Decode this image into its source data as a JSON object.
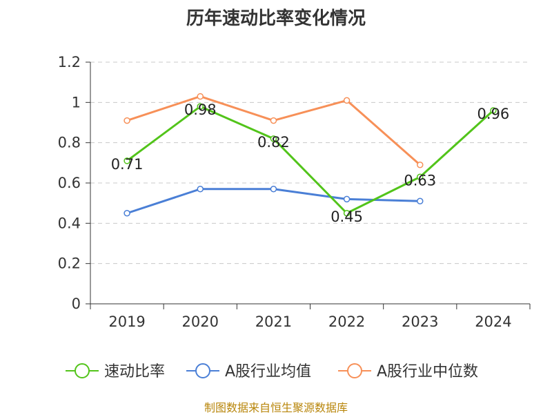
{
  "chart_data": {
    "type": "line",
    "title": "历年速动比率变化情况",
    "xlabel": "",
    "ylabel": "",
    "categories": [
      "2019",
      "2020",
      "2021",
      "2022",
      "2023",
      "2024"
    ],
    "ylim": [
      0,
      1.2
    ],
    "yticks": [
      "0",
      "0.2",
      "0.4",
      "0.6",
      "0.8",
      "1",
      "1.2"
    ],
    "grid": true,
    "legend_position": "bottom",
    "series": [
      {
        "name": "速动比率",
        "color": "#52c41a",
        "values": [
          0.71,
          0.98,
          0.82,
          0.45,
          0.63,
          0.96
        ],
        "labels": [
          "0.71",
          "0.98",
          "0.82",
          "0.45",
          "0.63",
          "0.96"
        ]
      },
      {
        "name": "A股行业均值",
        "color": "#4a7fd6",
        "values": [
          0.45,
          0.57,
          0.57,
          0.52,
          0.51,
          null
        ]
      },
      {
        "name": "A股行业中位数",
        "color": "#f79058",
        "values": [
          0.91,
          1.03,
          0.91,
          1.01,
          0.69,
          null
        ]
      }
    ]
  },
  "source": "制图数据来自恒生聚源数据库"
}
